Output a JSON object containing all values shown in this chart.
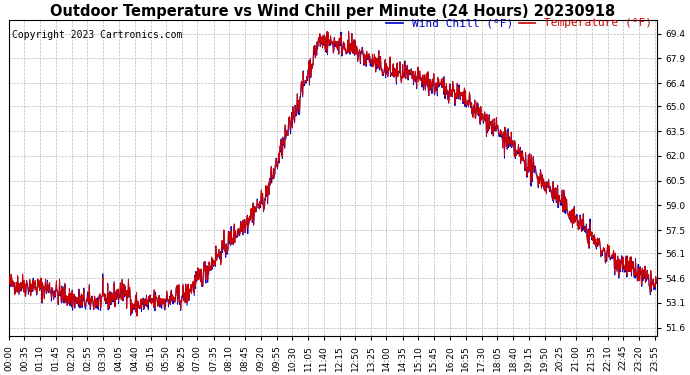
{
  "title": "Outdoor Temperature vs Wind Chill per Minute (24 Hours) 20230918",
  "copyright": "Copyright 2023 Cartronics.com",
  "legend_wind_chill": "Wind Chill (°F)",
  "legend_temperature": "Temperature (°F)",
  "wind_chill_color": "#0000cc",
  "temperature_color": "#cc0000",
  "background_color": "#ffffff",
  "grid_color": "#bbbbbb",
  "ylim": [
    51.1,
    70.2
  ],
  "yticks": [
    51.6,
    53.1,
    54.6,
    56.1,
    57.5,
    59.0,
    60.5,
    62.0,
    63.5,
    65.0,
    66.4,
    67.9,
    69.4
  ],
  "title_fontsize": 10.5,
  "copyright_fontsize": 7,
  "legend_fontsize": 8,
  "tick_fontsize": 6.5
}
